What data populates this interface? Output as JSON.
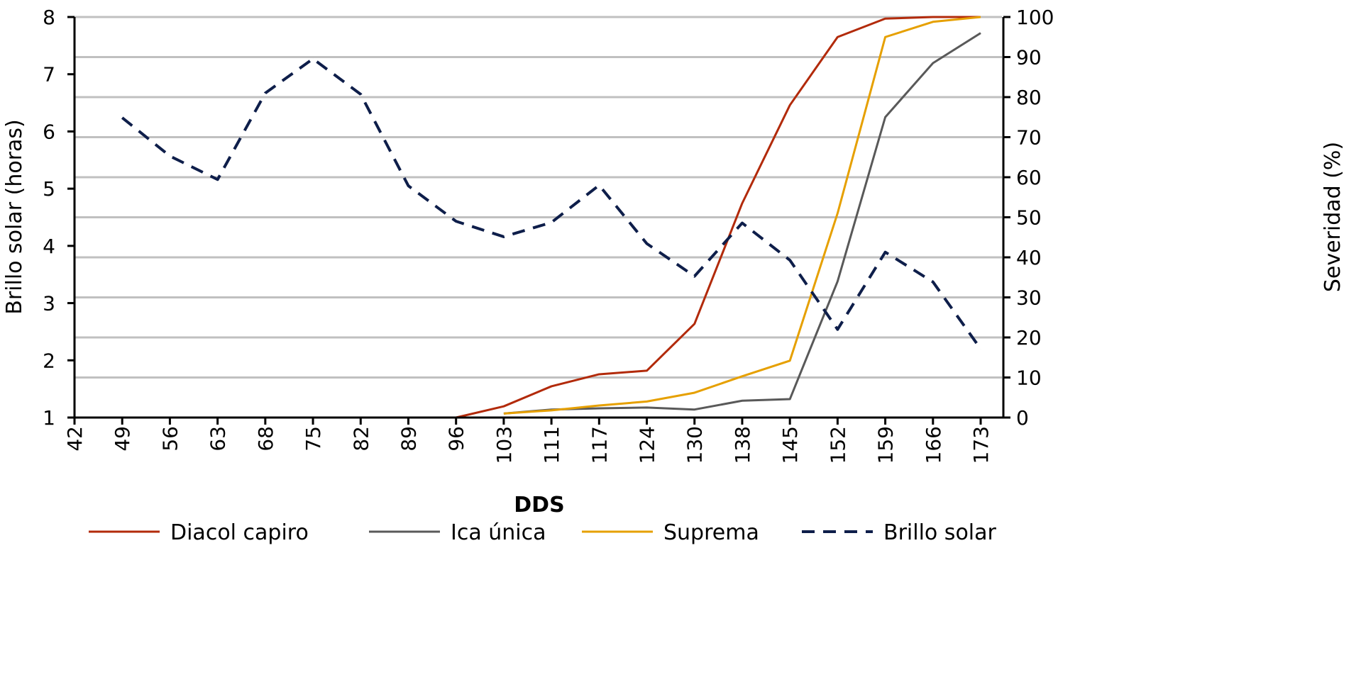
{
  "chart_data": {
    "type": "line",
    "xlabel": "DDS",
    "ylabel": "Brillo solar (horas)",
    "y2label": "Severidad (%)",
    "categories": [
      "42",
      "49",
      "56",
      "63",
      "68",
      "75",
      "82",
      "89",
      "96",
      "103",
      "111",
      "117",
      "124",
      "130",
      "138",
      "145",
      "152",
      "159",
      "166",
      "173"
    ],
    "ylim": [
      1,
      8
    ],
    "yticks": [
      1,
      2,
      3,
      4,
      5,
      6,
      7,
      8
    ],
    "y2lim": [
      0,
      100
    ],
    "y2ticks": [
      0,
      10,
      20,
      30,
      40,
      50,
      60,
      70,
      80,
      90,
      100
    ],
    "grid": true,
    "legend_position": "bottom",
    "series": [
      {
        "name": "Diacol capiro",
        "axis": "right",
        "color": "#b22a0a",
        "dash": false,
        "values": [
          null,
          null,
          null,
          null,
          null,
          null,
          null,
          null,
          0,
          2.8,
          7.8,
          10.8,
          11.7,
          23.4,
          53.5,
          78,
          95,
          99.6,
          100,
          100
        ]
      },
      {
        "name": "Ica única",
        "axis": "right",
        "color": "#595959",
        "dash": false,
        "values": [
          null,
          null,
          null,
          null,
          null,
          null,
          null,
          null,
          null,
          1,
          2,
          2.3,
          2.5,
          2,
          4.2,
          4.6,
          34,
          75,
          88.5,
          96
        ]
      },
      {
        "name": "Suprema",
        "axis": "right",
        "color": "#e6a000",
        "dash": false,
        "values": [
          null,
          null,
          null,
          null,
          null,
          null,
          null,
          null,
          null,
          1,
          1.8,
          3,
          4,
          6.2,
          10.3,
          14.2,
          51,
          95,
          98.8,
          100
        ]
      },
      {
        "name": "Brillo solar",
        "axis": "left",
        "color": "#0e1e4a",
        "dash": true,
        "values": [
          null,
          6.24,
          5.57,
          5.16,
          6.67,
          7.27,
          6.65,
          5.05,
          4.43,
          4.16,
          4.41,
          5.06,
          4.04,
          3.47,
          4.4,
          3.75,
          2.54,
          3.89,
          3.37,
          2.2
        ]
      }
    ]
  }
}
